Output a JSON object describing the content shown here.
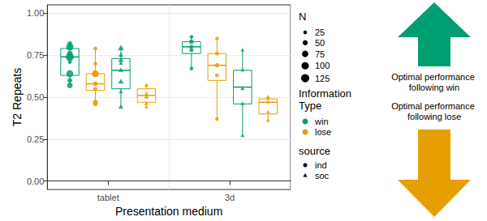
{
  "chart_data": {
    "type": "boxplot",
    "x_label": "Presentation medium",
    "y_label": "T2 Repeats",
    "categories": [
      "tablet",
      "3d"
    ],
    "ylim": [
      -0.05,
      1.05
    ],
    "yticks": [
      {
        "value": 0,
        "label": "0.00"
      },
      {
        "value": 0.25,
        "label": "0.25"
      },
      {
        "value": 0.5,
        "label": "0.50"
      },
      {
        "value": 0.75,
        "label": "0.75"
      },
      {
        "value": 1,
        "label": "1.00"
      }
    ],
    "grid": true,
    "size_legend": {
      "title": "N",
      "values": [
        25,
        50,
        75,
        100,
        125
      ]
    },
    "color_legend_title": "Information Type",
    "marker_legend_title": "source",
    "series": [
      {
        "name": "win",
        "source": "ind",
        "color": "#009E73",
        "marker": "circle",
        "boxes": [
          [
            0.57,
            0.63,
            0.74,
            0.79,
            0.82
          ],
          [
            0.67,
            0.76,
            0.8,
            0.83,
            0.86
          ]
        ],
        "points": [
          [
            0.82,
            0.8,
            0.79,
            0.76,
            0.74,
            0.74,
            0.71,
            0.64,
            0.6,
            0.57
          ],
          [
            0.86,
            0.83,
            0.8,
            0.78,
            0.67
          ]
        ],
        "sizes": [
          [
            40,
            100,
            30,
            60,
            125,
            50,
            30,
            90,
            40,
            60
          ],
          [
            25,
            40,
            30,
            30,
            25
          ]
        ]
      },
      {
        "name": "lose",
        "source": "ind",
        "color": "#E69F00",
        "marker": "circle",
        "boxes": [
          [
            0.46,
            0.54,
            0.58,
            0.64,
            0.79
          ],
          [
            0.37,
            0.6,
            0.69,
            0.76,
            0.85
          ]
        ],
        "points": [
          [
            0.79,
            0.7,
            0.64,
            0.64,
            0.58,
            0.55,
            0.47,
            0.46
          ],
          [
            0.85,
            0.76,
            0.69,
            0.63,
            0.37
          ]
        ],
        "sizes": [
          [
            30,
            25,
            90,
            60,
            40,
            30,
            50,
            40
          ],
          [
            25,
            30,
            40,
            30,
            25
          ]
        ]
      },
      {
        "name": "win",
        "source": "soc",
        "color": "#009E73",
        "marker": "triangle",
        "boxes": [
          [
            0.44,
            0.55,
            0.66,
            0.73,
            0.79
          ],
          [
            0.27,
            0.46,
            0.56,
            0.66,
            0.78
          ]
        ],
        "points": [
          [
            0.79,
            0.75,
            0.72,
            0.7,
            0.66,
            0.59,
            0.53,
            0.44
          ],
          [
            0.78,
            0.66,
            0.55,
            0.46,
            0.27
          ]
        ],
        "sizes": [
          [
            60,
            40,
            50,
            30,
            40,
            50,
            30,
            40
          ],
          [
            25,
            25,
            30,
            25,
            25
          ]
        ]
      },
      {
        "name": "lose",
        "source": "soc",
        "color": "#E69F00",
        "marker": "triangle",
        "boxes": [
          [
            0.44,
            0.47,
            0.51,
            0.55,
            0.58
          ],
          [
            0.36,
            0.4,
            0.47,
            0.49,
            0.5
          ]
        ],
        "points": [
          [
            0.57,
            0.52,
            0.5,
            0.46,
            0.44
          ],
          [
            0.5,
            0.49,
            0.47,
            0.41,
            0.36
          ]
        ],
        "sizes": [
          [
            30,
            25,
            40,
            30,
            25
          ],
          [
            30,
            25,
            25,
            25,
            30
          ]
        ]
      }
    ],
    "annotations": [
      {
        "text": "Optimal performance following win",
        "color": "#009E73"
      },
      {
        "text": "Optimal performance following lose",
        "color": "#E69F00"
      }
    ]
  }
}
